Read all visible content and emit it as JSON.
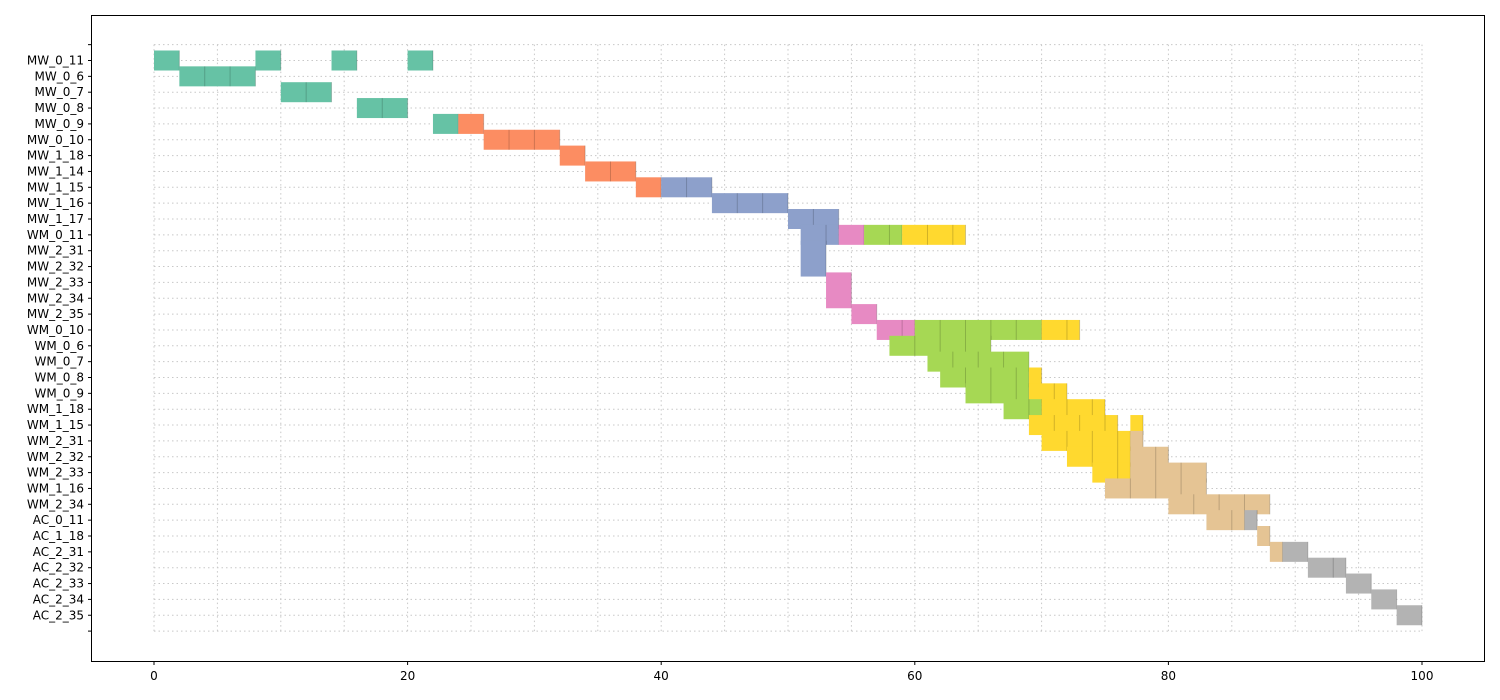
{
  "chart_data": {
    "type": "gantt",
    "title": "",
    "xlabel": "",
    "ylabel": "",
    "xlim": [
      -5,
      105
    ],
    "x_ticks": [
      0,
      20,
      40,
      60,
      80,
      100
    ],
    "grid": true,
    "rows": [
      "MW_0_11",
      "MW_0_6",
      "MW_0_7",
      "MW_0_8",
      "MW_0_9",
      "MW_0_10",
      "MW_1_18",
      "MW_1_14",
      "MW_1_15",
      "MW_1_16",
      "MW_1_17",
      "WM_0_11",
      "MW_2_31",
      "MW_2_32",
      "MW_2_33",
      "MW_2_34",
      "MW_2_35",
      "WM_0_10",
      "WM_0_6",
      "WM_0_7",
      "WM_0_8",
      "WM_0_9",
      "WM_1_18",
      "WM_1_15",
      "WM_2_31",
      "WM_2_32",
      "WM_2_33",
      "WM_1_16",
      "WM_2_34",
      "AC_0_11",
      "AC_1_18",
      "AC_2_31",
      "AC_2_32",
      "AC_2_33",
      "AC_2_34",
      "AC_2_35"
    ],
    "colors": {
      "teal": "#66c2a5",
      "orange": "#fc8d62",
      "blue": "#8da0cb",
      "pink": "#e78ac3",
      "green": "#a6d854",
      "yellow": "#ffd92f",
      "tan": "#e5c494",
      "gray": "#b3b3b3"
    },
    "tasks": [
      {
        "start": 0,
        "end": 2,
        "y0": 0,
        "y1": 0,
        "color": "teal"
      },
      {
        "start": 2,
        "end": 8,
        "y0": 1,
        "y1": 1,
        "color": "teal"
      },
      {
        "start": 8,
        "end": 10,
        "y0": 0,
        "y1": 0,
        "color": "teal"
      },
      {
        "start": 10,
        "end": 14,
        "y0": 2,
        "y1": 2,
        "color": "teal"
      },
      {
        "start": 14,
        "end": 16,
        "y0": 0,
        "y1": 0,
        "color": "teal"
      },
      {
        "start": 16,
        "end": 20,
        "y0": 3,
        "y1": 3,
        "color": "teal"
      },
      {
        "start": 20,
        "end": 22,
        "y0": 0,
        "y1": 0,
        "color": "teal"
      },
      {
        "start": 22,
        "end": 24,
        "y0": 4,
        "y1": 4,
        "color": "teal"
      },
      {
        "start": 24,
        "end": 26,
        "y0": 4,
        "y1": 4,
        "color": "orange"
      },
      {
        "start": 26,
        "end": 32,
        "y0": 5,
        "y1": 5,
        "color": "orange"
      },
      {
        "start": 32,
        "end": 34,
        "y0": 6,
        "y1": 6,
        "color": "orange"
      },
      {
        "start": 34,
        "end": 38,
        "y0": 7,
        "y1": 7,
        "color": "orange"
      },
      {
        "start": 38,
        "end": 40,
        "y0": 8,
        "y1": 8,
        "color": "orange"
      },
      {
        "start": 40,
        "end": 44,
        "y0": 8,
        "y1": 8,
        "color": "blue"
      },
      {
        "start": 44,
        "end": 50,
        "y0": 9,
        "y1": 9,
        "color": "blue"
      },
      {
        "start": 50,
        "end": 54,
        "y0": 10,
        "y1": 10,
        "color": "blue"
      },
      {
        "start": 51,
        "end": 54,
        "y0": 11,
        "y1": 11,
        "color": "blue"
      },
      {
        "start": 51,
        "end": 53,
        "y0": 12,
        "y1": 13,
        "color": "blue"
      },
      {
        "start": 54,
        "end": 56,
        "y0": 11,
        "y1": 11,
        "color": "pink"
      },
      {
        "start": 56,
        "end": 59,
        "y0": 11,
        "y1": 11,
        "color": "green"
      },
      {
        "start": 59,
        "end": 64,
        "y0": 11,
        "y1": 11,
        "color": "yellow"
      },
      {
        "start": 53,
        "end": 55,
        "y0": 14,
        "y1": 15,
        "color": "pink"
      },
      {
        "start": 55,
        "end": 57,
        "y0": 16,
        "y1": 16,
        "color": "pink"
      },
      {
        "start": 57,
        "end": 60,
        "y0": 17,
        "y1": 17,
        "color": "pink"
      },
      {
        "start": 60,
        "end": 70,
        "y0": 17,
        "y1": 17,
        "color": "green"
      },
      {
        "start": 70,
        "end": 73,
        "y0": 17,
        "y1": 17,
        "color": "yellow"
      },
      {
        "start": 58,
        "end": 66,
        "y0": 18,
        "y1": 18,
        "color": "green"
      },
      {
        "start": 61,
        "end": 69,
        "y0": 19,
        "y1": 19,
        "color": "green"
      },
      {
        "start": 62,
        "end": 69,
        "y0": 20,
        "y1": 20,
        "color": "green"
      },
      {
        "start": 69,
        "end": 70,
        "y0": 20,
        "y1": 20,
        "color": "yellow"
      },
      {
        "start": 64,
        "end": 69,
        "y0": 21,
        "y1": 21,
        "color": "green"
      },
      {
        "start": 69,
        "end": 72,
        "y0": 21,
        "y1": 21,
        "color": "yellow"
      },
      {
        "start": 67,
        "end": 70,
        "y0": 22,
        "y1": 22,
        "color": "green"
      },
      {
        "start": 70,
        "end": 75,
        "y0": 22,
        "y1": 22,
        "color": "yellow"
      },
      {
        "start": 69,
        "end": 76,
        "y0": 23,
        "y1": 23,
        "color": "yellow"
      },
      {
        "start": 77,
        "end": 78,
        "y0": 23,
        "y1": 23,
        "color": "yellow"
      },
      {
        "start": 70,
        "end": 77,
        "y0": 24,
        "y1": 24,
        "color": "yellow"
      },
      {
        "start": 77,
        "end": 78,
        "y0": 24,
        "y1": 24,
        "color": "tan"
      },
      {
        "start": 72,
        "end": 77,
        "y0": 25,
        "y1": 25,
        "color": "yellow"
      },
      {
        "start": 77,
        "end": 80,
        "y0": 25,
        "y1": 25,
        "color": "tan"
      },
      {
        "start": 74,
        "end": 77,
        "y0": 26,
        "y1": 26,
        "color": "yellow"
      },
      {
        "start": 77,
        "end": 83,
        "y0": 26,
        "y1": 26,
        "color": "tan"
      },
      {
        "start": 75,
        "end": 83,
        "y0": 27,
        "y1": 27,
        "color": "tan"
      },
      {
        "start": 80,
        "end": 88,
        "y0": 28,
        "y1": 28,
        "color": "tan"
      },
      {
        "start": 83,
        "end": 86,
        "y0": 29,
        "y1": 29,
        "color": "tan"
      },
      {
        "start": 86,
        "end": 87,
        "y0": 29,
        "y1": 29,
        "color": "gray"
      },
      {
        "start": 87,
        "end": 88,
        "y0": 30,
        "y1": 30,
        "color": "tan"
      },
      {
        "start": 88,
        "end": 89,
        "y0": 31,
        "y1": 31,
        "color": "tan"
      },
      {
        "start": 89,
        "end": 91,
        "y0": 31,
        "y1": 31,
        "color": "gray"
      },
      {
        "start": 91,
        "end": 94,
        "y0": 32,
        "y1": 32,
        "color": "gray"
      },
      {
        "start": 94,
        "end": 96,
        "y0": 33,
        "y1": 33,
        "color": "gray"
      },
      {
        "start": 96,
        "end": 98,
        "y0": 34,
        "y1": 34,
        "color": "gray"
      },
      {
        "start": 98,
        "end": 100,
        "y0": 35,
        "y1": 35,
        "color": "gray"
      }
    ]
  }
}
